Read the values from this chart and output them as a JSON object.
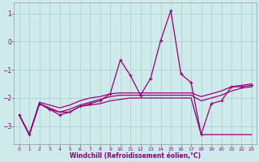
{
  "xlabel": "Windchill (Refroidissement éolien,°C)",
  "background_color": "#ceeaea",
  "grid_color": "#aacccc",
  "line_color": "#990077",
  "x": [
    0,
    1,
    2,
    3,
    4,
    5,
    6,
    7,
    8,
    9,
    10,
    11,
    12,
    13,
    14,
    15,
    16,
    17,
    18,
    19,
    20,
    21,
    22,
    23
  ],
  "y_main": [
    -2.6,
    -3.3,
    -2.2,
    -2.4,
    -2.6,
    -2.5,
    -2.3,
    -2.2,
    -2.1,
    -1.85,
    -0.65,
    -1.2,
    -1.9,
    -1.3,
    0.05,
    1.1,
    -1.15,
    -1.45,
    -3.3,
    -2.2,
    -2.1,
    -1.6,
    -1.6,
    -1.55
  ],
  "y_low": [
    -2.6,
    -3.3,
    -2.2,
    -2.4,
    -2.5,
    -2.5,
    -2.3,
    -2.25,
    -2.2,
    -2.1,
    -2.05,
    -2.0,
    -2.0,
    -2.0,
    -2.0,
    -2.0,
    -2.0,
    -2.0,
    -3.3,
    -3.3,
    -3.3,
    -3.3,
    -3.3,
    -3.3
  ],
  "y_mid1": [
    -2.6,
    -3.3,
    -2.2,
    -2.35,
    -2.5,
    -2.4,
    -2.25,
    -2.15,
    -2.05,
    -1.95,
    -1.9,
    -1.9,
    -1.9,
    -1.9,
    -1.9,
    -1.9,
    -1.9,
    -1.9,
    -2.1,
    -2.0,
    -1.9,
    -1.75,
    -1.65,
    -1.6
  ],
  "y_mid2": [
    -2.6,
    -3.3,
    -2.15,
    -2.25,
    -2.35,
    -2.25,
    -2.1,
    -2.0,
    -1.95,
    -1.85,
    -1.82,
    -1.82,
    -1.82,
    -1.82,
    -1.82,
    -1.82,
    -1.82,
    -1.82,
    -1.95,
    -1.85,
    -1.75,
    -1.6,
    -1.55,
    -1.5
  ],
  "ylim": [
    -3.65,
    1.4
  ],
  "xlim": [
    -0.5,
    23.5
  ],
  "yticks": [
    -3,
    -2,
    -1,
    0,
    1
  ],
  "xticks": [
    0,
    1,
    2,
    3,
    4,
    5,
    6,
    7,
    8,
    9,
    10,
    11,
    12,
    13,
    14,
    15,
    16,
    17,
    18,
    19,
    20,
    21,
    22,
    23
  ]
}
